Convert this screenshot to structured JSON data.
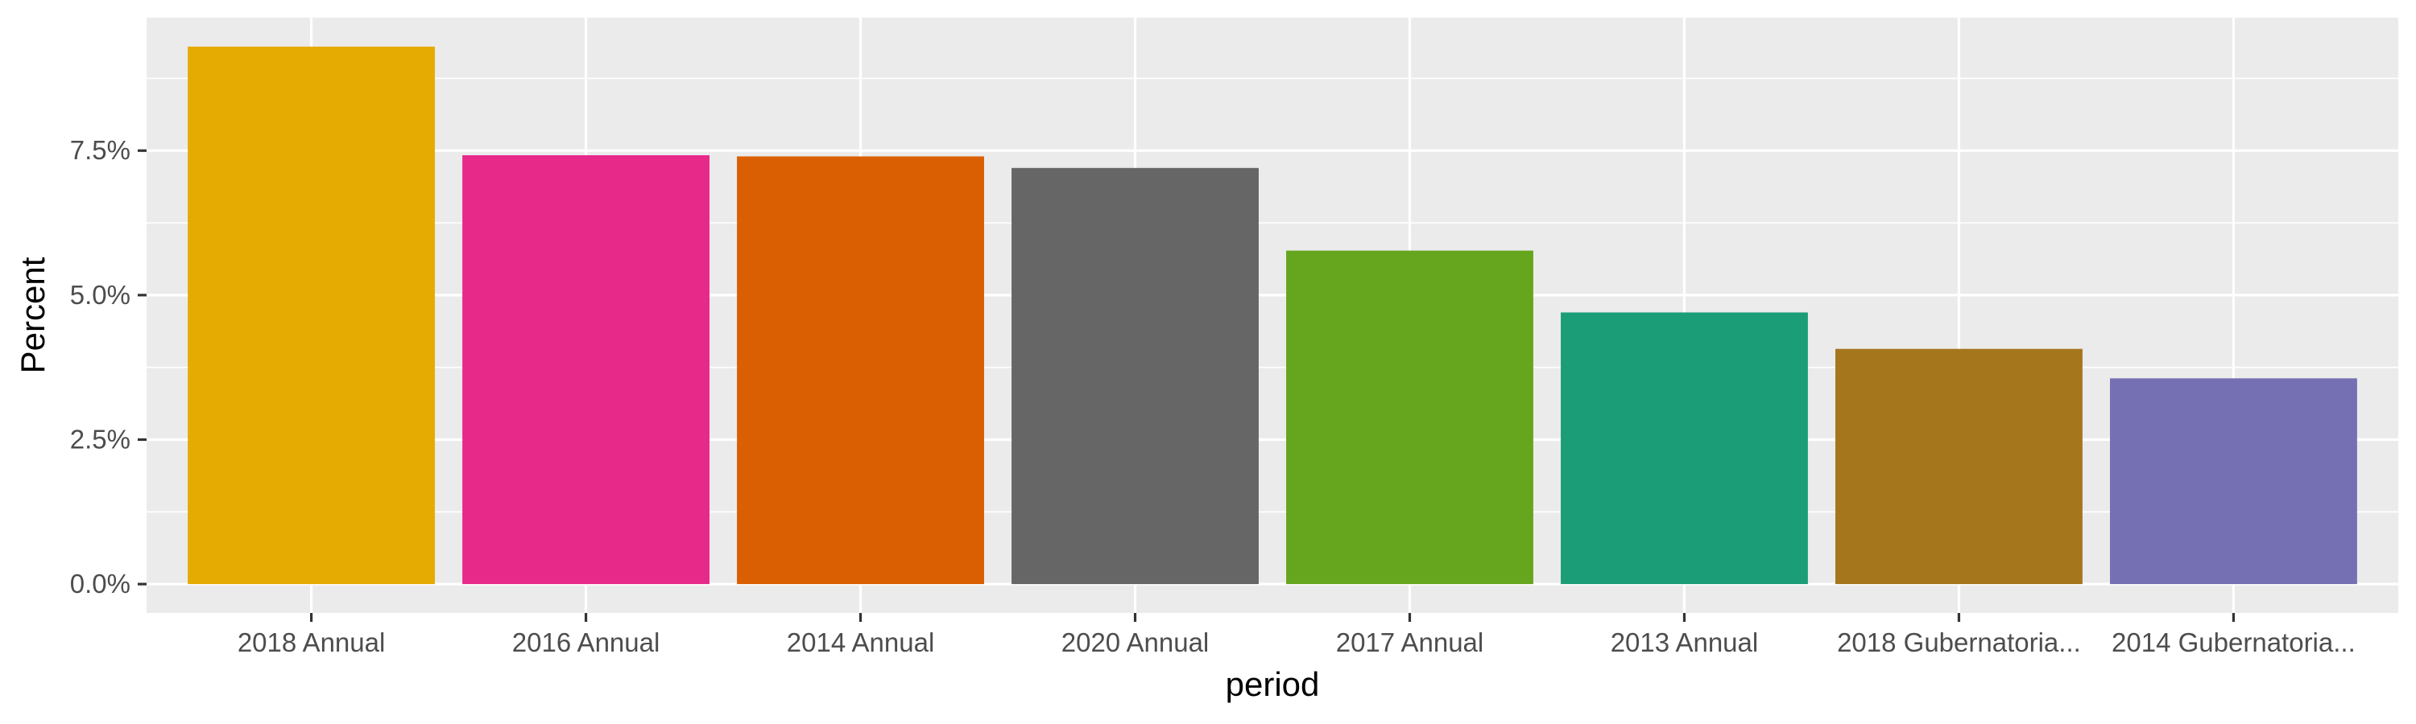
{
  "chart_data": {
    "type": "bar",
    "title": "",
    "xlabel": "period",
    "ylabel": "Percent",
    "categories": [
      "2018 Annual",
      "2016 Annual",
      "2014 Annual",
      "2020 Annual",
      "2017 Annual",
      "2013 Annual",
      "2018 Gubernatoria...",
      "2014 Gubernatoria..."
    ],
    "values": [
      9.3,
      7.42,
      7.4,
      7.2,
      5.77,
      4.7,
      4.07,
      3.56
    ],
    "value_unit": "%",
    "colors": [
      "#E6AB02",
      "#E7298A",
      "#D95F02",
      "#666666",
      "#66A61E",
      "#1B9E77",
      "#A6761D",
      "#7570B3"
    ],
    "ylim": [
      -0.5,
      9.8
    ],
    "y_ticks": [
      0,
      2.5,
      5,
      7.5
    ],
    "y_tick_labels": [
      "0.0%",
      "2.5%",
      "5.0%",
      "7.5%"
    ],
    "grid": true,
    "panel_background": "#EBEBEB",
    "grid_color": "#FFFFFF",
    "legend": "none"
  }
}
